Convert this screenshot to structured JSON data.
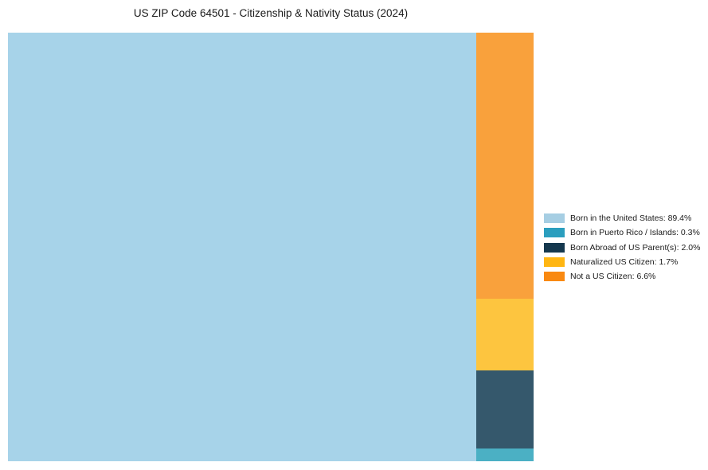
{
  "title": "US ZIP Code 64501 - Citizenship & Nativity Status (2024)",
  "chart_data": {
    "type": "treemap",
    "title": "US ZIP Code 64501 - Citizenship & Nativity Status (2024)",
    "unit": "%",
    "legend_position": "right",
    "segments": [
      {
        "label": "Born in the United States",
        "value": 89.4,
        "legend_text": "Born in the United States: 89.4%",
        "legend_color": "#a6cee3",
        "fill_color": "#a7d3e9"
      },
      {
        "label": "Born in Puerto Rico / Islands",
        "value": 0.3,
        "legend_text": "Born in Puerto Rico / Islands: 0.3%",
        "legend_color": "#2b9ebe",
        "fill_color": "#4bb0c4"
      },
      {
        "label": "Born Abroad of US Parent(s)",
        "value": 2.0,
        "legend_text": "Born Abroad of US Parent(s): 2.0%",
        "legend_color": "#15384e",
        "fill_color": "#35586c"
      },
      {
        "label": "Naturalized US Citizen",
        "value": 1.7,
        "legend_text": "Naturalized US Citizen: 1.7%",
        "legend_color": "#ffb612",
        "fill_color": "#fdc53f"
      },
      {
        "label": "Not a US Citizen",
        "value": 6.6,
        "legend_text": "Not a US Citizen: 6.6%",
        "legend_color": "#f98911",
        "fill_color": "#f9a13c"
      }
    ]
  }
}
